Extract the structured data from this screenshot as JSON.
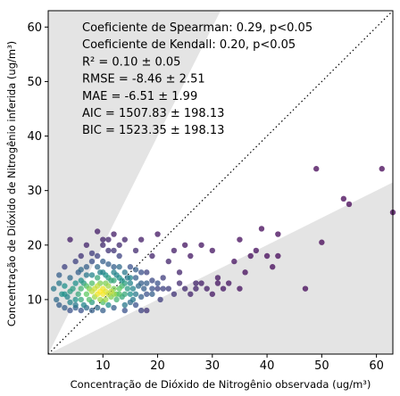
{
  "chart_data": {
    "type": "scatter",
    "xlabel": "Concentração de Dióxido de Nitrogênio observada (ug/m³)",
    "ylabel": "Concentração de Dióxido de Nitrogênio inferida (ug/m³)",
    "xlim": [
      0,
      63
    ],
    "ylim": [
      0,
      63
    ],
    "xticks": [
      10,
      20,
      30,
      40,
      50,
      60
    ],
    "yticks": [
      10,
      20,
      30,
      40,
      50,
      60
    ],
    "grid": false,
    "identity_line": true,
    "band_color": "#e4e4e4",
    "colormap": [
      "#440154",
      "#3b528b",
      "#21918c",
      "#5ec962",
      "#fde725"
    ],
    "stats": [
      "Coeficiente de Spearman: 0.29, p<0.05",
      "Coeficiente de Kendall: 0.20, p<0.05",
      "R² = 0.10 ± 0.05",
      "RMSE = -8.46 ± 2.51",
      "MAE = -6.51 ± 1.99",
      "AIC = 1507.83 ± 198.13",
      "BIC = 1523.35 ± 198.13"
    ],
    "points": [
      [
        1,
        12,
        0.4
      ],
      [
        1.5,
        10,
        0.35
      ],
      [
        2,
        13,
        0.4
      ],
      [
        2,
        9,
        0.3
      ],
      [
        2.5,
        11,
        0.5
      ],
      [
        3,
        12.5,
        0.5
      ],
      [
        3,
        8.5,
        0.3
      ],
      [
        3.5,
        10.5,
        0.45
      ],
      [
        4,
        11.5,
        0.55
      ],
      [
        4,
        14,
        0.35
      ],
      [
        4,
        8,
        0.25
      ],
      [
        4.5,
        12,
        0.55
      ],
      [
        5,
        10,
        0.5
      ],
      [
        5,
        13,
        0.5
      ],
      [
        5,
        9,
        0.4
      ],
      [
        5.5,
        11,
        0.6
      ],
      [
        5.5,
        15,
        0.3
      ],
      [
        6,
        12,
        0.65
      ],
      [
        6,
        10,
        0.6
      ],
      [
        6,
        18,
        0.15
      ],
      [
        6.5,
        13,
        0.55
      ],
      [
        6.5,
        9,
        0.45
      ],
      [
        7,
        11,
        0.75
      ],
      [
        7,
        14.5,
        0.4
      ],
      [
        7,
        20,
        0.1
      ],
      [
        7.5,
        12,
        0.8
      ],
      [
        7.5,
        10,
        0.7
      ],
      [
        8,
        11.5,
        0.9
      ],
      [
        8,
        13,
        0.7
      ],
      [
        8,
        9.5,
        0.55
      ],
      [
        8,
        17,
        0.25
      ],
      [
        8.5,
        12,
        0.92
      ],
      [
        8.5,
        10.5,
        0.85
      ],
      [
        9,
        11,
        0.97
      ],
      [
        9,
        12.5,
        0.9
      ],
      [
        9,
        14,
        0.6
      ],
      [
        9,
        18,
        0.2
      ],
      [
        9.5,
        11.5,
        1.0
      ],
      [
        9.5,
        10,
        0.85
      ],
      [
        9.5,
        13,
        0.8
      ],
      [
        10,
        11,
        0.98
      ],
      [
        10,
        12,
        0.97
      ],
      [
        10,
        9.5,
        0.7
      ],
      [
        10,
        15,
        0.45
      ],
      [
        10,
        21,
        0.1
      ],
      [
        10.5,
        11.5,
        0.95
      ],
      [
        10.5,
        13,
        0.8
      ],
      [
        10.5,
        10,
        0.85
      ],
      [
        11,
        11,
        0.9
      ],
      [
        11,
        12.5,
        0.85
      ],
      [
        11,
        14,
        0.55
      ],
      [
        11,
        19,
        0.15
      ],
      [
        11,
        9,
        0.5
      ],
      [
        11.5,
        11.5,
        0.9
      ],
      [
        11.5,
        10.5,
        0.8
      ],
      [
        12,
        11,
        0.85
      ],
      [
        12,
        12,
        0.8
      ],
      [
        12,
        13.5,
        0.6
      ],
      [
        12,
        16,
        0.3
      ],
      [
        12,
        22,
        0.08
      ],
      [
        12.5,
        11,
        0.75
      ],
      [
        12.5,
        10,
        0.65
      ],
      [
        13,
        12,
        0.75
      ],
      [
        13,
        11,
        0.7
      ],
      [
        13,
        14,
        0.5
      ],
      [
        13,
        18,
        0.2
      ],
      [
        13.5,
        10.5,
        0.6
      ],
      [
        13.5,
        12.5,
        0.65
      ],
      [
        14,
        11,
        0.6
      ],
      [
        14,
        13,
        0.55
      ],
      [
        14,
        9,
        0.4
      ],
      [
        14,
        21,
        0.1
      ],
      [
        14.5,
        12,
        0.55
      ],
      [
        15,
        11,
        0.5
      ],
      [
        15,
        13,
        0.45
      ],
      [
        15,
        16,
        0.25
      ],
      [
        15,
        9.5,
        0.35
      ],
      [
        15.5,
        12,
        0.45
      ],
      [
        16,
        11,
        0.4
      ],
      [
        16,
        14,
        0.3
      ],
      [
        16,
        19,
        0.12
      ],
      [
        16.5,
        12.5,
        0.35
      ],
      [
        17,
        10.5,
        0.3
      ],
      [
        17,
        13,
        0.3
      ],
      [
        17,
        21,
        0.08
      ],
      [
        17.5,
        12,
        0.3
      ],
      [
        18,
        11,
        0.25
      ],
      [
        18,
        15,
        0.2
      ],
      [
        18,
        8,
        0.15
      ],
      [
        19,
        12,
        0.25
      ],
      [
        19,
        13.5,
        0.22
      ],
      [
        19,
        18,
        0.1
      ],
      [
        20,
        12,
        0.2
      ],
      [
        20,
        22,
        0.06
      ],
      [
        20.5,
        10,
        0.18
      ],
      [
        21,
        14,
        0.18
      ],
      [
        21,
        12,
        0.2
      ],
      [
        22,
        17,
        0.1
      ],
      [
        22,
        12,
        0.18
      ],
      [
        23,
        19,
        0.08
      ],
      [
        23,
        11,
        0.15
      ],
      [
        24,
        13,
        0.12
      ],
      [
        24,
        15,
        0.1
      ],
      [
        25,
        12,
        0.12
      ],
      [
        25,
        20,
        0.05
      ],
      [
        26,
        18,
        0.06
      ],
      [
        26,
        11,
        0.1
      ],
      [
        27,
        13,
        0.1
      ],
      [
        27,
        12,
        0.1
      ],
      [
        28,
        20,
        0.05
      ],
      [
        28,
        13,
        0.08
      ],
      [
        29,
        12,
        0.08
      ],
      [
        30,
        19,
        0.05
      ],
      [
        30,
        11,
        0.06
      ],
      [
        31,
        14,
        0.05
      ],
      [
        31,
        13,
        0.05
      ],
      [
        32,
        12,
        0.06
      ],
      [
        33,
        13,
        0.05
      ],
      [
        34,
        17,
        0.04
      ],
      [
        35,
        12,
        0.04
      ],
      [
        35,
        21,
        0.03
      ],
      [
        36,
        15,
        0.03
      ],
      [
        37,
        18,
        0.03
      ],
      [
        38,
        19,
        0.03
      ],
      [
        39,
        23,
        0.02
      ],
      [
        40,
        18,
        0.02
      ],
      [
        41,
        16,
        0.02
      ],
      [
        42,
        22,
        0.02
      ],
      [
        42,
        18,
        0.02
      ],
      [
        47,
        12,
        0.02
      ],
      [
        49,
        34,
        0.01
      ],
      [
        50,
        20.5,
        0.01
      ],
      [
        54,
        28.5,
        0.01
      ],
      [
        55,
        27.5,
        0.01
      ],
      [
        61,
        34,
        0.01
      ],
      [
        63,
        26,
        0.01
      ],
      [
        2,
        14.5,
        0.3
      ],
      [
        3,
        16,
        0.2
      ],
      [
        4,
        21,
        0.08
      ],
      [
        5,
        17,
        0.2
      ],
      [
        6,
        15.5,
        0.35
      ],
      [
        7,
        16,
        0.3
      ],
      [
        8,
        18.5,
        0.18
      ],
      [
        9,
        16,
        0.35
      ],
      [
        10,
        17,
        0.3
      ],
      [
        11,
        16.5,
        0.3
      ],
      [
        12,
        15,
        0.45
      ],
      [
        13,
        16,
        0.35
      ],
      [
        14,
        15,
        0.4
      ],
      [
        15,
        14,
        0.45
      ],
      [
        16,
        15.5,
        0.3
      ],
      [
        17,
        15,
        0.25
      ],
      [
        18,
        13,
        0.3
      ],
      [
        19,
        11,
        0.3
      ],
      [
        20,
        13,
        0.25
      ],
      [
        13,
        20,
        0.12
      ],
      [
        9,
        22.5,
        0.08
      ],
      [
        10,
        20,
        0.12
      ],
      [
        12,
        19,
        0.15
      ],
      [
        11,
        21,
        0.1
      ],
      [
        5,
        8.5,
        0.3
      ],
      [
        6,
        8,
        0.25
      ],
      [
        7,
        8.5,
        0.35
      ],
      [
        8,
        8,
        0.3
      ],
      [
        9,
        8.5,
        0.35
      ],
      [
        10,
        8,
        0.3
      ],
      [
        12,
        8.5,
        0.3
      ],
      [
        14,
        8,
        0.25
      ],
      [
        16,
        9,
        0.25
      ],
      [
        17,
        8,
        0.2
      ],
      [
        3,
        11,
        0.5
      ],
      [
        4,
        9.5,
        0.45
      ],
      [
        6,
        13.5,
        0.5
      ],
      [
        7,
        12.5,
        0.7
      ],
      [
        8,
        14.5,
        0.45
      ],
      [
        15.5,
        10,
        0.4
      ],
      [
        14.5,
        14,
        0.4
      ],
      [
        13.5,
        13.5,
        0.5
      ],
      [
        12.5,
        14.5,
        0.45
      ],
      [
        11.5,
        13.5,
        0.6
      ],
      [
        10.5,
        14.5,
        0.5
      ],
      [
        9.5,
        15,
        0.45
      ]
    ]
  }
}
